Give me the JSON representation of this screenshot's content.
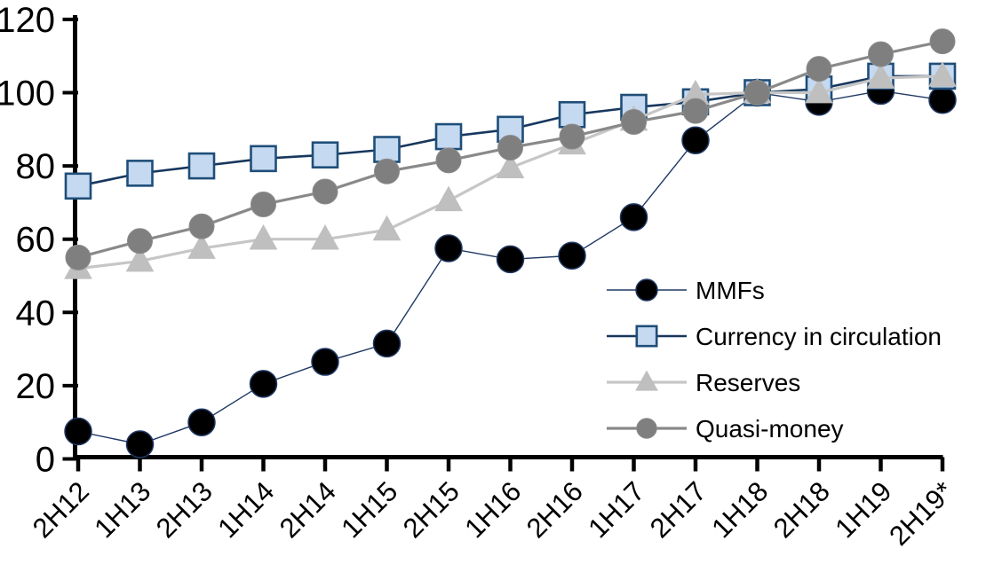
{
  "chart_data": {
    "type": "line",
    "title": "",
    "xlabel": "",
    "ylabel": "",
    "ylim": [
      0,
      120
    ],
    "y_ticks": [
      0,
      20,
      40,
      60,
      80,
      100,
      120
    ],
    "grid": false,
    "legend_position": "inside-right",
    "background_color": "#ffffff",
    "axis_color": "#000000",
    "categories": [
      "2H12",
      "1H13",
      "2H13",
      "1H14",
      "2H14",
      "1H15",
      "2H15",
      "1H16",
      "2H16",
      "1H17",
      "2H17",
      "1H18",
      "2H18",
      "1H19",
      "2H19*"
    ],
    "series": [
      {
        "name": "MMFs",
        "marker": "circle",
        "marker_fill": "#000000",
        "marker_stroke": "#1F3864",
        "marker_stroke_width": 1.5,
        "marker_size": 30,
        "line_color": "#1F3864",
        "line_width": 1.4,
        "values": [
          7.5,
          4,
          10,
          20.5,
          26.5,
          31.5,
          57.5,
          54.5,
          55.5,
          66,
          87,
          100,
          97.5,
          100.5,
          98
        ]
      },
      {
        "name": "Currency in circulation",
        "marker": "square",
        "marker_fill": "#C5D9F1",
        "marker_stroke": "#1F4E79",
        "marker_stroke_width": 2.6,
        "marker_size": 28,
        "line_color": "#17375E",
        "line_width": 2.6,
        "values": [
          74.5,
          78,
          80,
          82,
          83,
          84.5,
          88,
          90,
          94,
          96,
          97.5,
          100,
          101,
          104.5,
          104.5
        ]
      },
      {
        "name": "Reserves",
        "marker": "triangle",
        "marker_fill": "#BFBFBF",
        "marker_stroke": "#BFBFBF",
        "marker_stroke_width": 1,
        "marker_size": 30,
        "line_color": "#C6C6C6",
        "line_width": 3.2,
        "values": [
          52,
          54,
          57.5,
          60,
          60,
          62.5,
          70.5,
          79.5,
          86,
          92.5,
          99.5,
          100,
          100,
          104,
          104.5
        ]
      },
      {
        "name": "Quasi-money",
        "marker": "circle",
        "marker_fill": "#7F7F7F",
        "marker_stroke": "#8C8C8C",
        "marker_stroke_width": 1,
        "marker_size": 28,
        "line_color": "#898989",
        "line_width": 3.2,
        "values": [
          55,
          59.5,
          63.5,
          69.5,
          73,
          78.5,
          81.5,
          85,
          88,
          92,
          95,
          100,
          106.5,
          110.5,
          114
        ]
      }
    ]
  }
}
